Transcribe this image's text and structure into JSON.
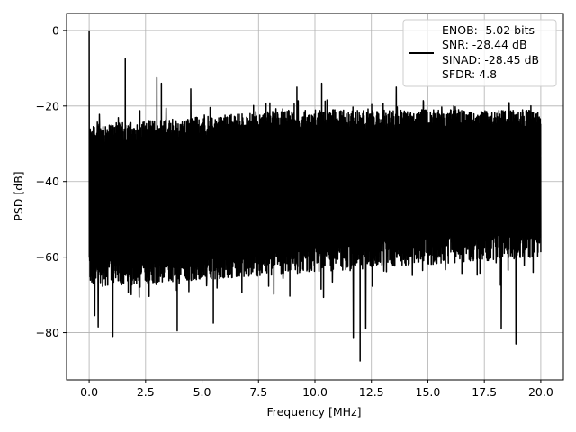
{
  "chart_data": {
    "type": "line",
    "title": "",
    "xlabel": "Frequency [MHz]",
    "ylabel": "PSD [dB]",
    "xlim": [
      -1.0,
      21.0
    ],
    "ylim": [
      -92.5,
      4.5
    ],
    "xticks": [
      0.0,
      2.5,
      5.0,
      7.5,
      10.0,
      12.5,
      15.0,
      17.5,
      20.0
    ],
    "xtick_labels": [
      "0.0",
      "2.5",
      "5.0",
      "7.5",
      "10.0",
      "12.5",
      "15.0",
      "17.5",
      "20.0"
    ],
    "yticks": [
      0,
      -20,
      -40,
      -60,
      -80
    ],
    "ytick_labels": [
      "0",
      "−20",
      "−40",
      "−60",
      "−80"
    ],
    "grid": true,
    "legend_position": "top-right",
    "legend": [
      "ENOB: -5.02 bits",
      "SNR: -28.44 dB",
      "SINAD: -28.45 dB",
      "SFDR: 4.8"
    ],
    "series": [
      {
        "color": "#000000",
        "x_range": [
          0.0,
          20.0
        ],
        "noise_floor_db": -40,
        "noise_envelope_top_db": [
          -25,
          -21
        ],
        "noise_envelope_bottom_db": [
          -68,
          -60
        ],
        "peaks": [
          {
            "x": 0.0,
            "y": 0.0
          },
          {
            "x": 1.6,
            "y": -7.5
          },
          {
            "x": 3.0,
            "y": -12.5
          },
          {
            "x": 3.2,
            "y": -14
          },
          {
            "x": 4.5,
            "y": -15.5
          },
          {
            "x": 9.2,
            "y": -15
          },
          {
            "x": 10.3,
            "y": -14
          },
          {
            "x": 13.6,
            "y": -15
          }
        ],
        "dips": [
          {
            "x": 0.25,
            "y": -75.5
          },
          {
            "x": 0.4,
            "y": -78.5
          },
          {
            "x": 1.05,
            "y": -81
          },
          {
            "x": 3.9,
            "y": -79.5
          },
          {
            "x": 5.5,
            "y": -77.5
          },
          {
            "x": 11.7,
            "y": -81.5
          },
          {
            "x": 12.0,
            "y": -87.5
          },
          {
            "x": 12.25,
            "y": -79
          },
          {
            "x": 18.25,
            "y": -79
          },
          {
            "x": 18.9,
            "y": -83
          }
        ]
      }
    ]
  }
}
